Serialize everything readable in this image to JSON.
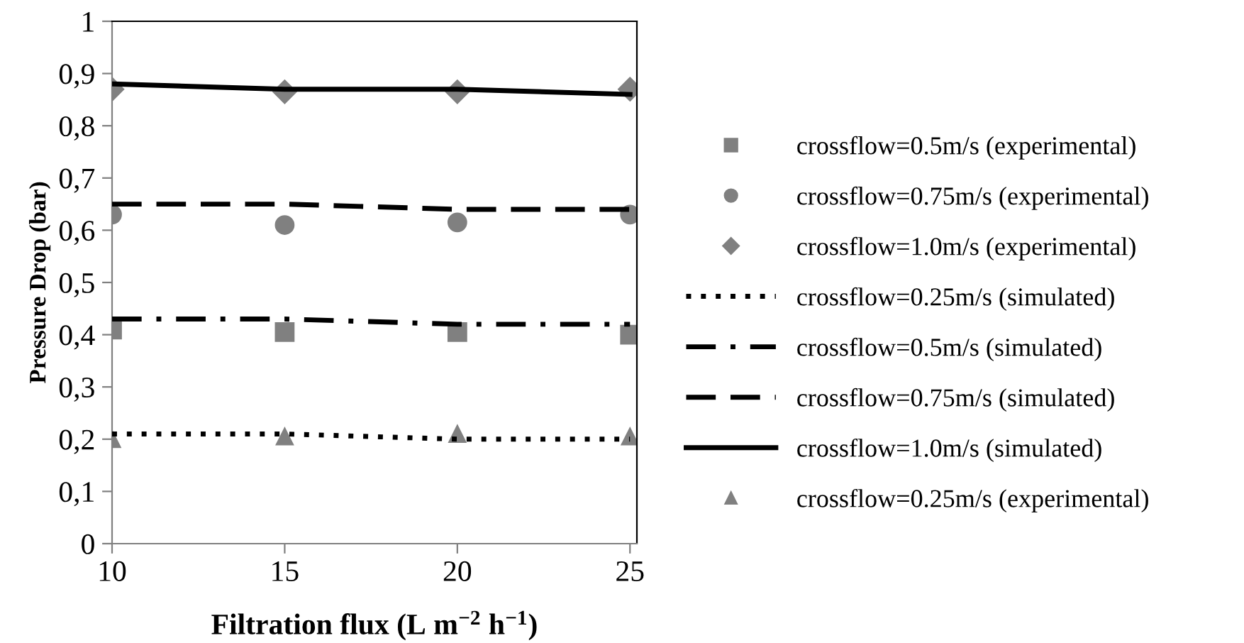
{
  "chart_data": {
    "type": "scatter",
    "xlabel": "Filtration flux (L m$^{−2}$ h$^{−1}$)",
    "ylabel": "Pressure Drop (bar)",
    "x": [
      10,
      15,
      20,
      25
    ],
    "xlim": [
      10,
      25.2
    ],
    "xticks": [
      10,
      15,
      20,
      25
    ],
    "ylim": [
      0,
      1
    ],
    "yticks": [
      0,
      {
        "value": 0.1,
        "label": "0,1"
      },
      {
        "value": 0.2,
        "label": "0,2"
      },
      {
        "value": 0.3,
        "label": "0,3"
      },
      {
        "value": 0.4,
        "label": "0,4"
      },
      {
        "value": 0.5,
        "label": "0,5"
      },
      {
        "value": 0.6,
        "label": "0,6"
      },
      {
        "value": 0.7,
        "label": "0,7"
      },
      {
        "value": 0.8,
        "label": "0,8"
      },
      {
        "value": 0.9,
        "label": "0,9"
      },
      1
    ],
    "grid": false,
    "legend": "right",
    "series": [
      {
        "name": "crossflow=0.5m/s (experimental)",
        "marker": "square",
        "color": "#808080",
        "values": [
          0.41,
          0.405,
          0.405,
          0.4
        ]
      },
      {
        "name": "crossflow=0.75m/s (experimental)",
        "marker": "circle",
        "color": "#808080",
        "values": [
          0.63,
          0.61,
          0.615,
          0.63
        ]
      },
      {
        "name": "crossflow=1.0m/s (experimental)",
        "marker": "diamond",
        "color": "#808080",
        "values": [
          0.87,
          0.865,
          0.865,
          0.87
        ]
      },
      {
        "name": "crossflow=0.25m/s (simulated)",
        "type": "line",
        "line_style": "dotted",
        "color": "#000000",
        "values": [
          0.21,
          0.21,
          0.2,
          0.2
        ]
      },
      {
        "name": "crossflow=0.5m/s (simulated)",
        "type": "line",
        "line_style": "dashdot",
        "color": "#000000",
        "values": [
          0.43,
          0.43,
          0.42,
          0.42
        ]
      },
      {
        "name": "crossflow=0.75m/s (simulated)",
        "type": "line",
        "line_style": "dashed",
        "color": "#000000",
        "values": [
          0.65,
          0.65,
          0.64,
          0.64
        ]
      },
      {
        "name": "crossflow=1.0m/s (simulated)",
        "type": "line",
        "line_style": "solid",
        "color": "#000000",
        "values": [
          0.88,
          0.87,
          0.87,
          0.86
        ]
      },
      {
        "name": "crossflow=0.25m/s (experimental)",
        "marker": "triangle",
        "color": "#808080",
        "values": [
          0.2,
          0.205,
          0.21,
          0.205
        ]
      }
    ]
  }
}
